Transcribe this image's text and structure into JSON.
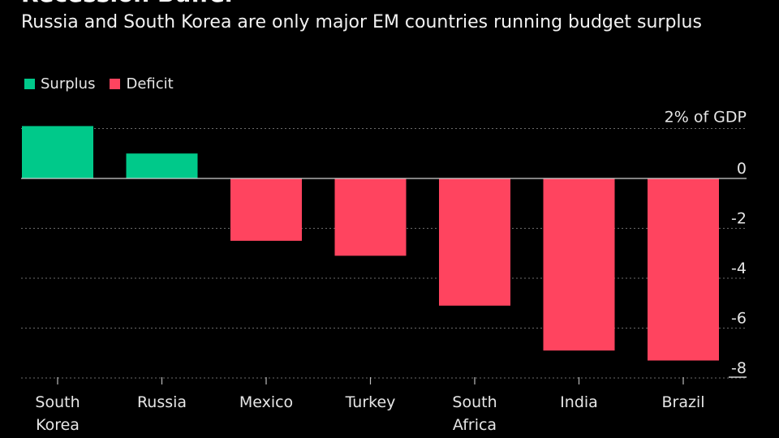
{
  "title": "Recession Buffer",
  "subtitle": "Russia and South Korea are only major EM countries running budget surplus",
  "colors": {
    "surplus": "#00c98a",
    "deficit": "#ff445f",
    "grid": "#6b6b6b",
    "text": "#e6e6e6"
  },
  "legend": [
    {
      "label": "Surplus",
      "color": "#00c98a"
    },
    {
      "label": "Deficit",
      "color": "#ff445f"
    }
  ],
  "chart_data": {
    "type": "bar",
    "categories": [
      [
        "South",
        "Korea"
      ],
      [
        "Russia"
      ],
      [
        "Mexico"
      ],
      [
        "Turkey"
      ],
      [
        "South",
        "Africa"
      ],
      [
        "India"
      ],
      [
        "Brazil"
      ]
    ],
    "values": [
      2.1,
      1.0,
      -2.5,
      -3.1,
      -5.1,
      -6.9,
      -7.3
    ],
    "ylim": [
      -8.5,
      2.2
    ],
    "yticks": [
      2,
      0,
      -2,
      -4,
      -6,
      -8
    ],
    "ytick_labels": [
      "2% of GDP",
      "0",
      "-2",
      "-4",
      "-6",
      "-8"
    ],
    "grid": true,
    "legend_position": "top-left"
  }
}
